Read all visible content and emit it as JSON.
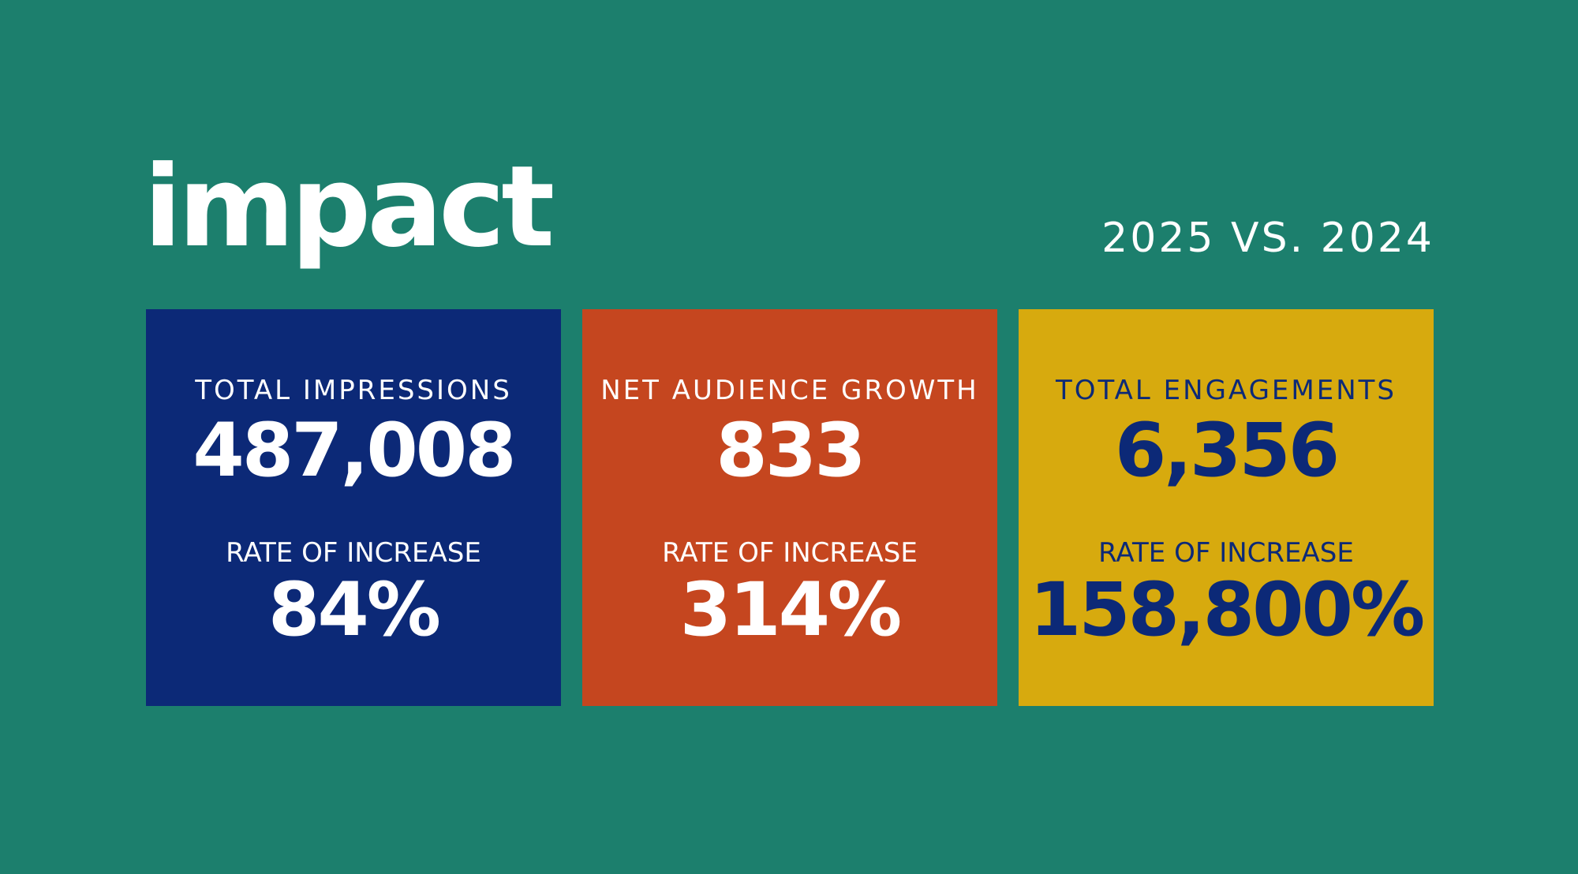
{
  "header": {
    "title": "impact",
    "subtitle": "2025 VS. 2024"
  },
  "colors": {
    "background": "#1c7f6d",
    "card_blue": "#0c2977",
    "card_orange": "#c5461f",
    "card_yellow": "#d7aa0e",
    "text_white": "#ffffff",
    "text_navy": "#0c2977"
  },
  "cards": [
    {
      "metric_label": "TOTAL IMPRESSIONS",
      "metric_value": "487,008",
      "rate_label": "RATE OF INCREASE",
      "rate_value": "84%",
      "background": "#0c2977",
      "text_color": "#ffffff"
    },
    {
      "metric_label": "NET AUDIENCE GROWTH",
      "metric_value": "833",
      "rate_label": "RATE OF INCREASE",
      "rate_value": "314%",
      "background": "#c5461f",
      "text_color": "#ffffff"
    },
    {
      "metric_label": "TOTAL ENGAGEMENTS",
      "metric_value": "6,356",
      "rate_label": "RATE OF INCREASE",
      "rate_value": "158,800%",
      "background": "#d7aa0e",
      "text_color": "#0c2977"
    }
  ]
}
